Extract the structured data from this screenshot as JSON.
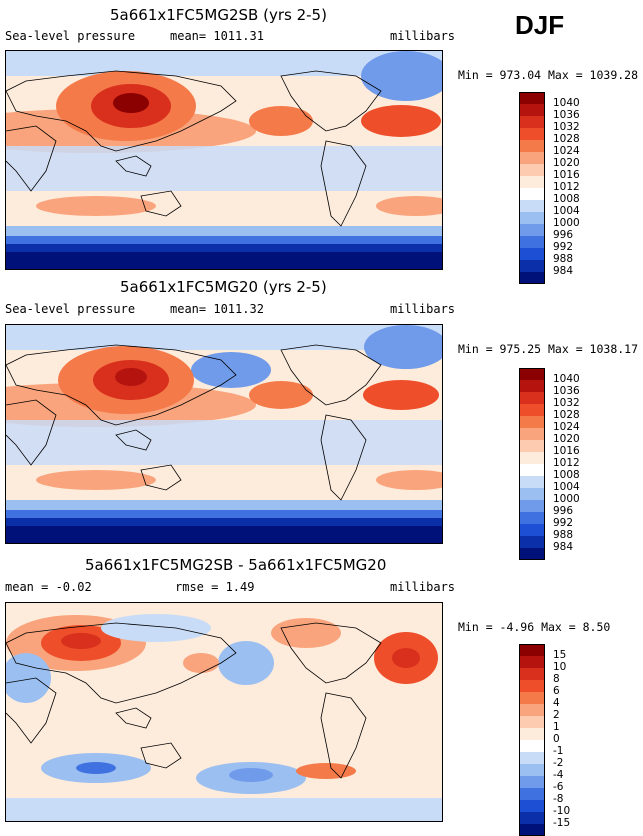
{
  "season": "DJF",
  "panels": [
    {
      "title": "5a661x1FC5MG2SB (yrs 2-5)",
      "left_label": "Sea-level pressure",
      "mid_label": "mean= 1011.31",
      "right_label": "millibars",
      "minmax": "Min = 973.04  Max = 1039.28"
    },
    {
      "title": "5a661x1FC5MG20 (yrs 2-5)",
      "left_label": "Sea-level pressure",
      "mid_label": "mean= 1011.32",
      "right_label": "millibars",
      "minmax": "Min = 975.25  Max = 1038.17"
    },
    {
      "title": "5a661x1FC5MG2SB - 5a661x1FC5MG20",
      "left_label": "mean =   -0.02",
      "mid_label": "rmse =   1.49",
      "right_label": "millibars",
      "minmax": "Min =  -4.96  Max =   8.50"
    }
  ],
  "chart_data": [
    {
      "type": "heatmap",
      "title": "5a661x1FC5MG2SB (yrs 2-5)",
      "variable": "Sea-level pressure",
      "units": "millibars",
      "mean": 1011.31,
      "min": 973.04,
      "max": 1039.28,
      "colorbar_levels": [
        1040,
        1036,
        1032,
        1028,
        1024,
        1020,
        1016,
        1012,
        1008,
        1004,
        1000,
        996,
        992,
        988,
        984
      ],
      "colorbar_colors": [
        "#8b0000",
        "#b5140e",
        "#d8301c",
        "#ee4f2a",
        "#f57a4a",
        "#f9a47c",
        "#fccbb0",
        "#fdebdb",
        "#ffffff",
        "#c9dcf7",
        "#9cbff2",
        "#6f9bea",
        "#3f71e0",
        "#1c4fd4",
        "#0a2fa8",
        "#00127a"
      ]
    },
    {
      "type": "heatmap",
      "title": "5a661x1FC5MG20 (yrs 2-5)",
      "variable": "Sea-level pressure",
      "units": "millibars",
      "mean": 1011.32,
      "min": 975.25,
      "max": 1038.17,
      "colorbar_levels": [
        1040,
        1036,
        1032,
        1028,
        1024,
        1020,
        1016,
        1012,
        1008,
        1004,
        1000,
        996,
        992,
        988,
        984
      ],
      "colorbar_colors": [
        "#8b0000",
        "#b5140e",
        "#d8301c",
        "#ee4f2a",
        "#f57a4a",
        "#f9a47c",
        "#fccbb0",
        "#fdebdb",
        "#ffffff",
        "#c9dcf7",
        "#9cbff2",
        "#6f9bea",
        "#3f71e0",
        "#1c4fd4",
        "#0a2fa8",
        "#00127a"
      ]
    },
    {
      "type": "heatmap",
      "title": "5a661x1FC5MG2SB - 5a661x1FC5MG20",
      "variable": "Sea-level pressure difference",
      "units": "millibars",
      "mean": -0.02,
      "rmse": 1.49,
      "min": -4.96,
      "max": 8.5,
      "colorbar_levels": [
        15,
        10,
        8,
        6,
        4,
        2,
        1,
        0,
        -1,
        -2,
        -4,
        -6,
        -8,
        -10,
        -15
      ],
      "colorbar_colors": [
        "#8b0000",
        "#b5140e",
        "#d8301c",
        "#ee4f2a",
        "#f57a4a",
        "#f9a47c",
        "#fccbb0",
        "#fdebdb",
        "#ffffff",
        "#c9dcf7",
        "#9cbff2",
        "#6f9bea",
        "#3f71e0",
        "#1c4fd4",
        "#0a2fa8",
        "#00127a"
      ]
    }
  ]
}
